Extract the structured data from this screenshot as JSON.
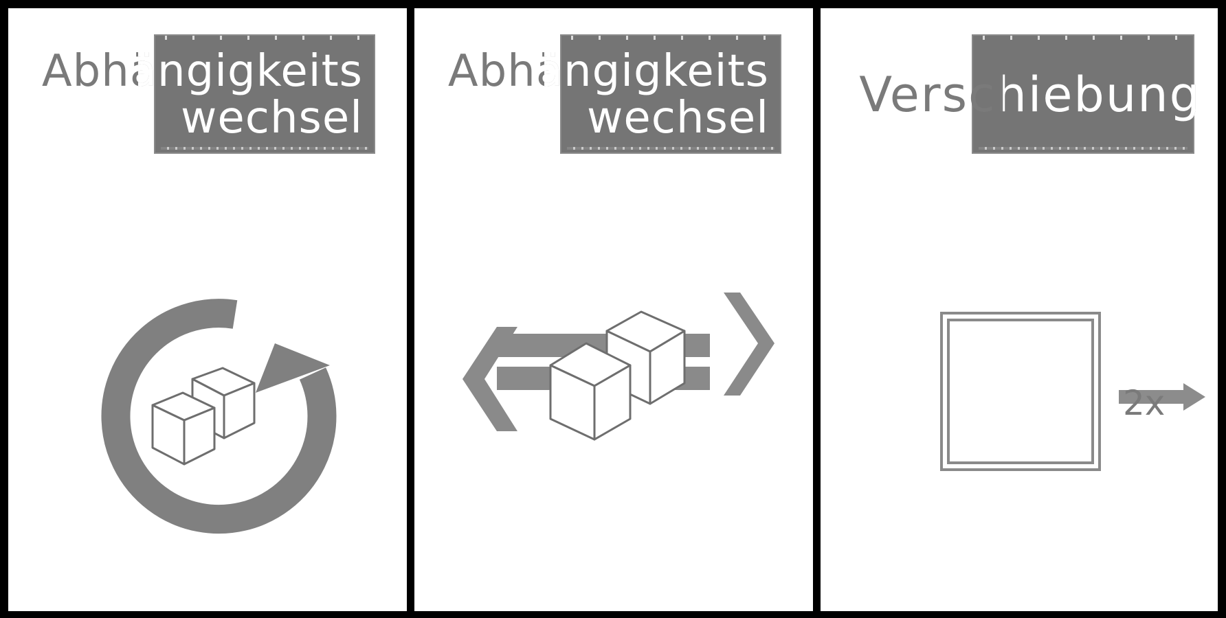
{
  "cards": [
    {
      "title_line1": "Abhängigkeits",
      "title_line2": "wechsel",
      "icon": "cubes-rotate-icon"
    },
    {
      "title_line1": "Abhängigkeits",
      "title_line2": "wechsel",
      "icon": "cubes-slide-icon"
    },
    {
      "title": "Verschiebung",
      "icon": "square-shift-icon",
      "icon_label": "2x"
    }
  ],
  "colors": {
    "background": "#000000",
    "card": "#ffffff",
    "banner": "#757575",
    "ink": "#7a7a7a",
    "accent": "#8c8c8c"
  }
}
